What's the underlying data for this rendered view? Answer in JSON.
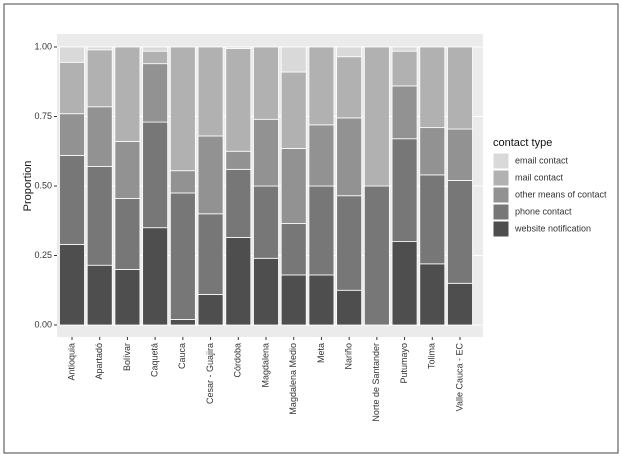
{
  "chart_data": {
    "type": "stacked_bar",
    "y_label": "Proportion",
    "legend_title": "contact type",
    "categories": [
      "Antioquia",
      "Apartadó",
      "Bolívar",
      "Caquetá",
      "Cauca",
      "Cesar - Guajira",
      "Córdoba",
      "Magdalena",
      "Magdalena Medio",
      "Meta",
      "Nariño",
      "Norte de Santander",
      "Putumayo",
      "Tolima",
      "Valle Cauca - EC"
    ],
    "series": [
      {
        "name": "email contact",
        "color": "#d9d9d9",
        "values": [
          0.055,
          0.01,
          0,
          0.015,
          0,
          0,
          0.005,
          0,
          0.09,
          0,
          0.035,
          0,
          0.015,
          0,
          0
        ]
      },
      {
        "name": "mail contact",
        "color": "#b1b1b1",
        "values": [
          0.185,
          0.205,
          0.34,
          0.045,
          0.445,
          0.32,
          0.37,
          0.26,
          0.275,
          0.28,
          0.22,
          0.5,
          0.125,
          0.29,
          0.295
        ]
      },
      {
        "name": "other means of contact",
        "color": "#929292",
        "values": [
          0.15,
          0.215,
          0.205,
          0.21,
          0.08,
          0.28,
          0.065,
          0.24,
          0.27,
          0.22,
          0.28,
          0,
          0.19,
          0.17,
          0.185
        ]
      },
      {
        "name": "phone contact",
        "color": "#777777",
        "values": [
          0.32,
          0.355,
          0.255,
          0.38,
          0.455,
          0.29,
          0.245,
          0.26,
          0.185,
          0.32,
          0.34,
          0.5,
          0.37,
          0.32,
          0.37
        ]
      },
      {
        "name": "website notification",
        "color": "#4e4e4e",
        "values": [
          0.29,
          0.215,
          0.2,
          0.35,
          0.02,
          0.11,
          0.315,
          0.24,
          0.18,
          0.18,
          0.125,
          0,
          0.3,
          0.22,
          0.15
        ]
      }
    ],
    "ylim": [
      0,
      1
    ],
    "yticks": [
      {
        "value": 0,
        "label": "0.00"
      },
      {
        "value": 0.25,
        "label": "0.25"
      },
      {
        "value": 0.5,
        "label": "0.50"
      },
      {
        "value": 0.75,
        "label": "0.75"
      },
      {
        "value": 1,
        "label": "1.00"
      }
    ],
    "grid": true,
    "legend_position": "right"
  }
}
